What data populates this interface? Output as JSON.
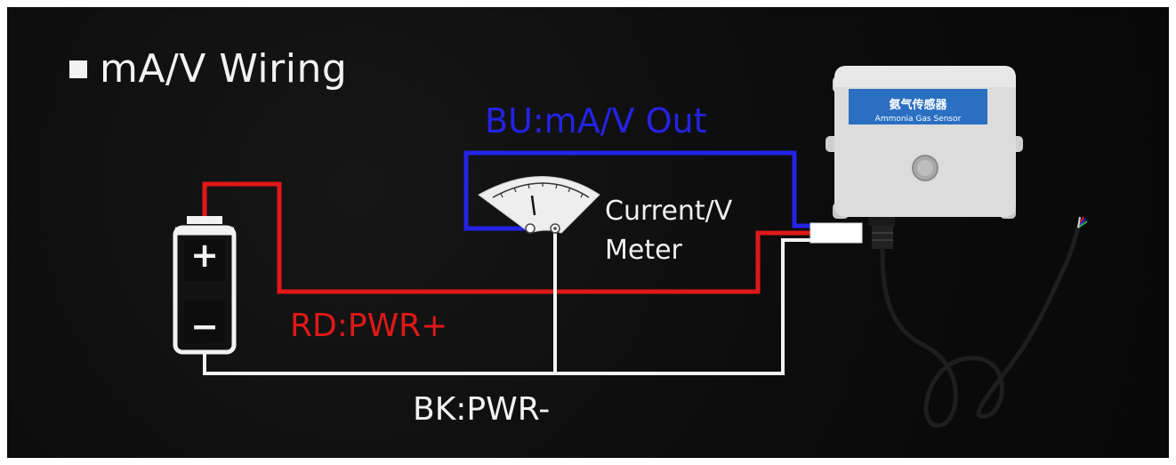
{
  "title": "mA/V Wiring",
  "labels": {
    "blue_wire": "BU:mA/V Out",
    "red_wire": "RD:PWR+",
    "black_wire": "BK:PWR-",
    "meter_line1": "Current/V",
    "meter_line2": "Meter"
  },
  "sensor": {
    "label_cn": "氨气传感器",
    "label_en": "Ammonia Gas Sensor"
  },
  "battery": {
    "plus": "+",
    "minus": "−"
  },
  "colors": {
    "background": "#0d0d0d",
    "blue_wire": "#2323e6",
    "red_wire": "#e01818",
    "black_wire": "#f2f2f2",
    "text": "#f2f2f2",
    "sensor_label_bg": "#2a6fc2"
  }
}
